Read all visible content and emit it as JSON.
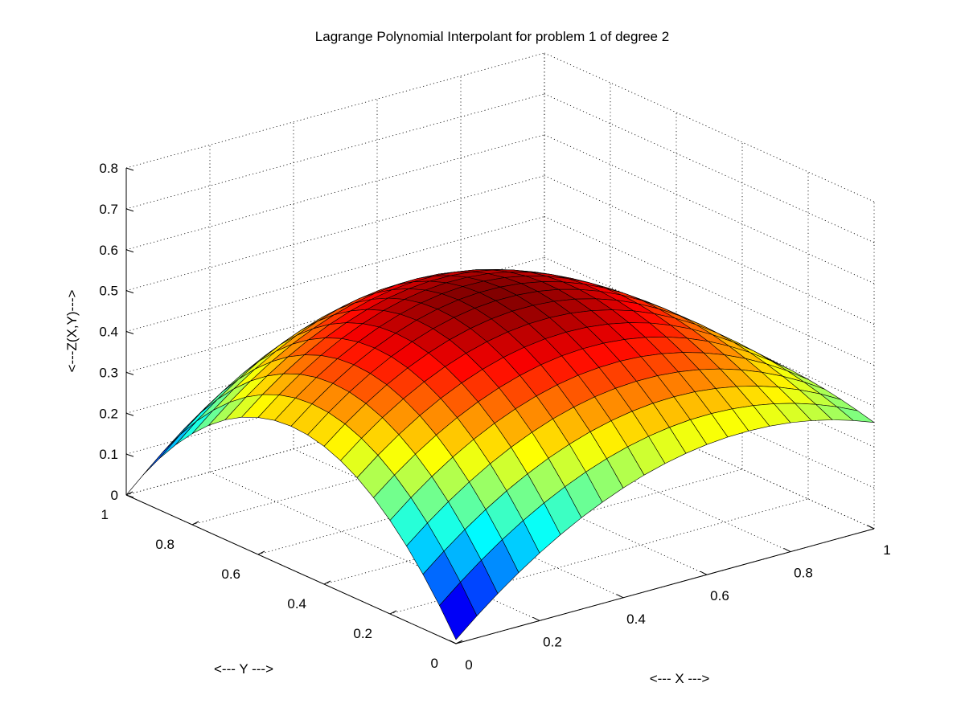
{
  "chart_data": {
    "type": "surface",
    "title": "Lagrange Polynomial Interpolant for problem 1 of degree 2",
    "xlabel": "<--- X --->",
    "ylabel": "<--- Y --->",
    "zlabel": "<---Z(X,Y)--->",
    "xlim": [
      0,
      1
    ],
    "ylim": [
      0,
      1
    ],
    "zlim": [
      0,
      0.8
    ],
    "x_ticks": [
      "0",
      "0.2",
      "0.4",
      "0.6",
      "0.8",
      "1"
    ],
    "y_ticks": [
      "0",
      "0.2",
      "0.4",
      "0.6",
      "0.8",
      "1"
    ],
    "z_ticks": [
      "0",
      "0.1",
      "0.2",
      "0.3",
      "0.4",
      "0.5",
      "0.6",
      "0.7",
      "0.8"
    ],
    "grid": true,
    "colormap": "jet",
    "interpolation_nodes_z": [
      [
        0.01,
        0.35,
        0.0
      ],
      [
        0.3,
        0.55,
        0.28
      ],
      [
        0.26,
        0.29,
        0.15
      ]
    ],
    "grid_resolution": 20
  }
}
